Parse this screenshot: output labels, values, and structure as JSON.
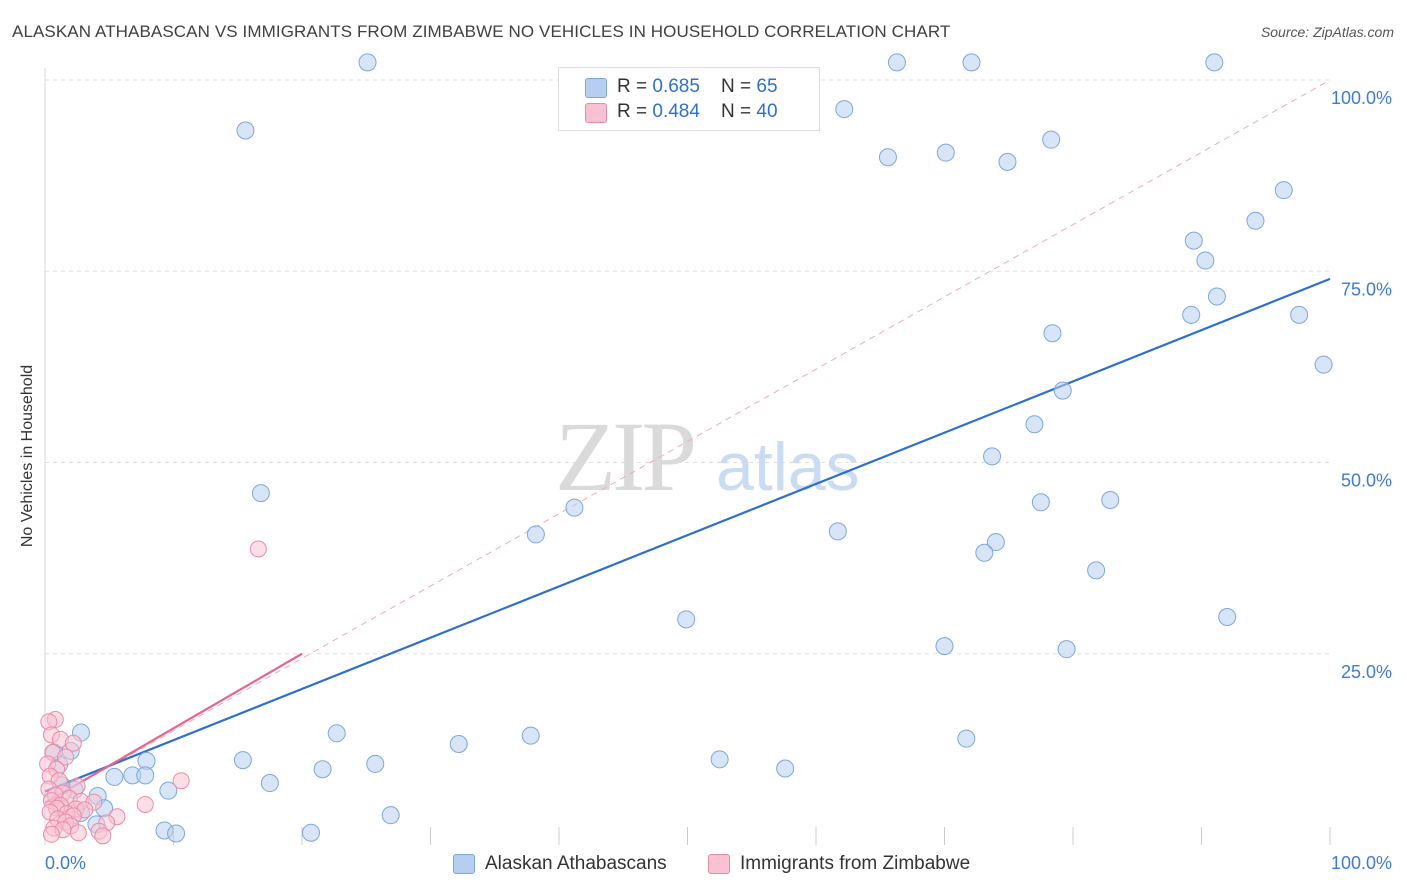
{
  "title": "ALASKAN ATHABASCAN VS IMMIGRANTS FROM ZIMBABWE NO VEHICLES IN HOUSEHOLD CORRELATION CHART",
  "source": "Source: ZipAtlas.com",
  "stats": {
    "row1": {
      "r_label": "R = ",
      "r_value": "0.685",
      "n_label": "N = ",
      "n_value": "65"
    },
    "row2": {
      "r_label": "R = ",
      "r_value": "0.484",
      "n_label": "N = ",
      "n_value": "40"
    }
  },
  "legend": {
    "series1": "Alaskan Athabascans",
    "series2": "Immigrants from Zimbabwe"
  },
  "colors": {
    "blue_fill": "#b6cff0",
    "blue_stroke": "#7fa6dc",
    "blue_line": "#2f6fd0",
    "pink_fill": "#f8c2d2",
    "pink_stroke": "#ec8aa8",
    "pink_line": "#e8658f",
    "grid": "#e0e0e0",
    "tick_text": "#3d7bd6"
  },
  "chart_data": {
    "type": "scatter",
    "title": "ALASKAN ATHABASCAN VS IMMIGRANTS FROM ZIMBABWE NO VEHICLES IN HOUSEHOLD CORRELATION CHART",
    "xlabel": "",
    "ylabel": "No Vehicles in Household",
    "xlim": [
      0,
      100
    ],
    "ylim": [
      0,
      100
    ],
    "x_tick_labels": [
      "0.0%",
      "100.0%"
    ],
    "y_ticks": [
      25,
      50,
      75,
      100
    ],
    "y_tick_labels": [
      "25.0%",
      "50.0%",
      "75.0%",
      "100.0%"
    ],
    "watermark": {
      "part1": "ZIP",
      "part2": "atlas"
    },
    "series": [
      {
        "name": "Alaskan Athabascans",
        "R": 0.685,
        "N": 65,
        "trend": {
          "x": [
            0,
            100
          ],
          "y": [
            7.0,
            74.0
          ]
        },
        "points": [
          [
            25.1,
            102.3
          ],
          [
            15.6,
            93.4
          ],
          [
            62.2,
            96.2
          ],
          [
            66.3,
            102.3
          ],
          [
            72.1,
            102.3
          ],
          [
            91.0,
            102.3
          ],
          [
            65.6,
            89.9
          ],
          [
            70.1,
            90.5
          ],
          [
            74.9,
            89.3
          ],
          [
            78.3,
            92.2
          ],
          [
            94.2,
            81.6
          ],
          [
            96.4,
            85.6
          ],
          [
            90.3,
            76.4
          ],
          [
            89.4,
            79.0
          ],
          [
            91.2,
            71.7
          ],
          [
            89.2,
            69.3
          ],
          [
            78.4,
            66.9
          ],
          [
            97.6,
            69.3
          ],
          [
            99.5,
            62.8
          ],
          [
            79.2,
            59.4
          ],
          [
            77.0,
            55.0
          ],
          [
            73.7,
            50.8
          ],
          [
            77.5,
            44.8
          ],
          [
            82.9,
            45.1
          ],
          [
            74.0,
            39.6
          ],
          [
            73.1,
            38.2
          ],
          [
            81.8,
            35.9
          ],
          [
            61.7,
            41.0
          ],
          [
            41.2,
            44.1
          ],
          [
            38.2,
            40.6
          ],
          [
            16.8,
            46.0
          ],
          [
            49.9,
            29.5
          ],
          [
            70.0,
            26.0
          ],
          [
            79.5,
            25.6
          ],
          [
            92.0,
            29.8
          ],
          [
            71.7,
            13.9
          ],
          [
            37.8,
            14.3
          ],
          [
            32.2,
            13.2
          ],
          [
            22.7,
            14.6
          ],
          [
            52.5,
            11.2
          ],
          [
            57.6,
            10.0
          ],
          [
            25.7,
            10.6
          ],
          [
            21.6,
            9.9
          ],
          [
            15.4,
            11.1
          ],
          [
            17.5,
            8.1
          ],
          [
            7.9,
            11.0
          ],
          [
            2.8,
            14.7
          ],
          [
            2.0,
            12.3
          ],
          [
            0.7,
            12.1
          ],
          [
            1.1,
            10.5
          ],
          [
            6.8,
            9.1
          ],
          [
            7.8,
            9.1
          ],
          [
            5.4,
            8.9
          ],
          [
            2.3,
            7.2
          ],
          [
            1.3,
            7.8
          ],
          [
            9.6,
            7.1
          ],
          [
            4.1,
            6.4
          ],
          [
            2.8,
            4.2
          ],
          [
            4.6,
            4.8
          ],
          [
            1.2,
            5.0
          ],
          [
            4.0,
            2.7
          ],
          [
            9.3,
            1.9
          ],
          [
            10.2,
            1.5
          ],
          [
            20.7,
            1.6
          ],
          [
            26.9,
            3.9
          ]
        ]
      },
      {
        "name": "Immigrants from Zimbabwe",
        "R": 0.484,
        "N": 40,
        "trend": {
          "x": [
            0,
            20
          ],
          "y": [
            5.5,
            25.0
          ]
        },
        "points": [
          [
            16.6,
            38.7
          ],
          [
            0.8,
            16.4
          ],
          [
            0.3,
            16.1
          ],
          [
            0.5,
            14.4
          ],
          [
            1.2,
            13.8
          ],
          [
            2.2,
            13.3
          ],
          [
            0.6,
            12.1
          ],
          [
            1.6,
            11.5
          ],
          [
            0.2,
            10.6
          ],
          [
            0.9,
            9.9
          ],
          [
            0.4,
            9.0
          ],
          [
            1.1,
            8.4
          ],
          [
            10.6,
            8.4
          ],
          [
            2.5,
            7.7
          ],
          [
            0.3,
            7.3
          ],
          [
            1.4,
            6.8
          ],
          [
            0.8,
            6.5
          ],
          [
            1.9,
            6.1
          ],
          [
            0.5,
            5.8
          ],
          [
            2.8,
            5.7
          ],
          [
            3.8,
            5.6
          ],
          [
            7.8,
            5.3
          ],
          [
            1.2,
            5.2
          ],
          [
            0.9,
            4.8
          ],
          [
            2.4,
            4.7
          ],
          [
            3.1,
            4.6
          ],
          [
            0.4,
            4.3
          ],
          [
            1.7,
            4.1
          ],
          [
            2.2,
            3.8
          ],
          [
            5.6,
            3.7
          ],
          [
            1.0,
            3.4
          ],
          [
            1.6,
            3.0
          ],
          [
            4.8,
            2.9
          ],
          [
            2.0,
            2.5
          ],
          [
            0.7,
            2.2
          ],
          [
            1.4,
            2.0
          ],
          [
            4.2,
            1.8
          ],
          [
            2.6,
            1.6
          ],
          [
            0.5,
            1.4
          ],
          [
            4.5,
            1.2
          ]
        ]
      }
    ]
  }
}
